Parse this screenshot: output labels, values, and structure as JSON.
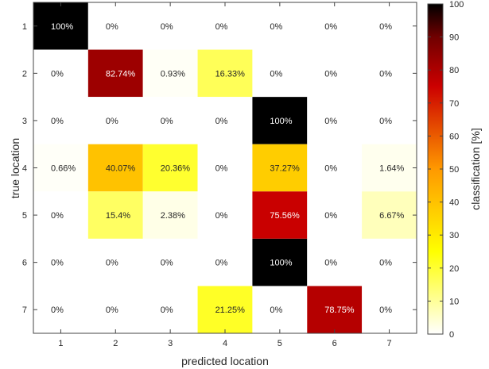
{
  "chart_data": {
    "type": "heatmap",
    "title": "",
    "xlabel": "predicted location",
    "ylabel": "true location",
    "x_categories": [
      "1",
      "2",
      "3",
      "4",
      "5",
      "6",
      "7"
    ],
    "y_categories": [
      "1",
      "2",
      "3",
      "4",
      "5",
      "6",
      "7"
    ],
    "values": [
      [
        100,
        0,
        0,
        0,
        0,
        0,
        0
      ],
      [
        0,
        82.74,
        0.93,
        16.33,
        0,
        0,
        0
      ],
      [
        0,
        0,
        0,
        0,
        100,
        0,
        0
      ],
      [
        0.66,
        40.07,
        20.36,
        0,
        37.27,
        0,
        1.64
      ],
      [
        0,
        15.4,
        2.38,
        0,
        75.56,
        0,
        6.67
      ],
      [
        0,
        0,
        0,
        0,
        100,
        0,
        0
      ],
      [
        0,
        0,
        0,
        21.25,
        0,
        78.75,
        0
      ]
    ],
    "cell_labels": [
      [
        "100%",
        "0%",
        "0%",
        "0%",
        "0%",
        "0%",
        "0%"
      ],
      [
        "0%",
        "82.74%",
        "0.93%",
        "16.33%",
        "0%",
        "0%",
        "0%"
      ],
      [
        "0%",
        "0%",
        "0%",
        "0%",
        "100%",
        "0%",
        "0%"
      ],
      [
        "0.66%",
        "40.07%",
        "20.36%",
        "0%",
        "37.27%",
        "0%",
        "1.64%"
      ],
      [
        "0%",
        "15.4%",
        "2.38%",
        "0%",
        "75.56%",
        "0%",
        "6.67%"
      ],
      [
        "0%",
        "0%",
        "0%",
        "0%",
        "100%",
        "0%",
        "0%"
      ],
      [
        "0%",
        "0%",
        "0%",
        "21.25%",
        "0%",
        "78.75%",
        "0%"
      ]
    ],
    "colormap": "hot-reversed",
    "colorbar": {
      "label": "classification [%]",
      "range": [
        0,
        100
      ],
      "ticks": [
        "0",
        "10",
        "20",
        "30",
        "40",
        "50",
        "60",
        "70",
        "80",
        "90",
        "100"
      ]
    },
    "grid": false
  }
}
